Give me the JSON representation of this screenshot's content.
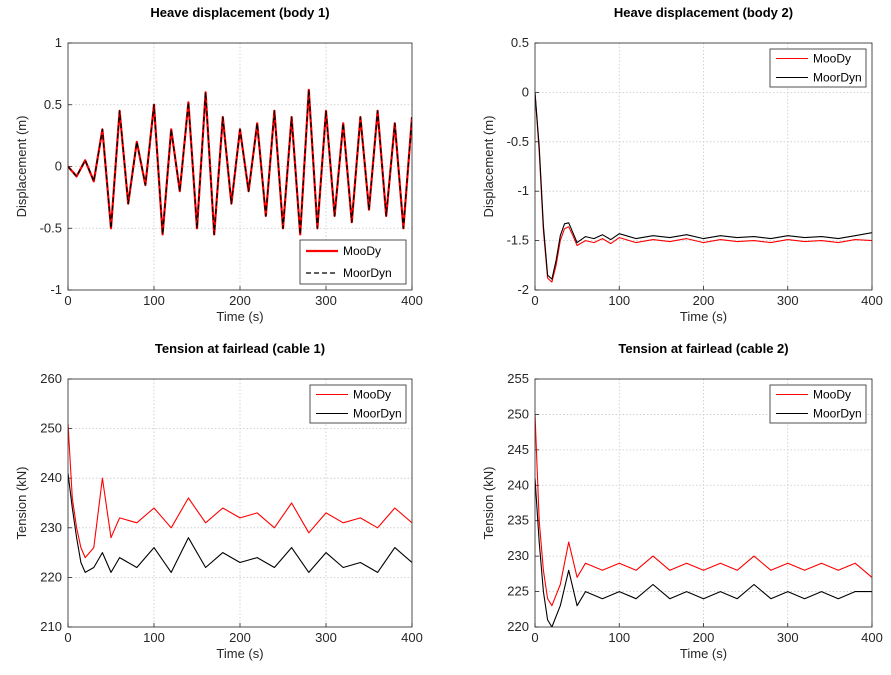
{
  "chart_data": [
    {
      "type": "line",
      "title": "Heave displacement (body 1)",
      "xlabel": "Time (s)",
      "ylabel": "Displacement (m)",
      "xlim": [
        0,
        400
      ],
      "ylim": [
        -1,
        1
      ],
      "xticks": [
        "0",
        "100",
        "200",
        "300",
        "400"
      ],
      "yticks": [
        "-1",
        "-0.5",
        "0",
        "0.5",
        "1"
      ],
      "grid": true,
      "legend_position": "bottom-right",
      "series": [
        {
          "name": "MooDy",
          "color": "#ff0000",
          "style": "solid-thick",
          "x": [
            0,
            10,
            20,
            30,
            40,
            50,
            60,
            70,
            80,
            90,
            100,
            110,
            120,
            130,
            140,
            150,
            160,
            170,
            180,
            190,
            200,
            210,
            220,
            230,
            240,
            250,
            260,
            270,
            280,
            290,
            300,
            310,
            320,
            330,
            340,
            350,
            360,
            370,
            380,
            390,
            400
          ],
          "y": [
            0,
            -0.08,
            0.05,
            -0.12,
            0.3,
            -0.5,
            0.45,
            -0.3,
            0.2,
            -0.15,
            0.5,
            -0.55,
            0.3,
            -0.2,
            0.52,
            -0.5,
            0.6,
            -0.55,
            0.4,
            -0.3,
            0.3,
            -0.2,
            0.35,
            -0.4,
            0.45,
            -0.5,
            0.4,
            -0.55,
            0.62,
            -0.5,
            0.45,
            -0.4,
            0.35,
            -0.45,
            0.4,
            -0.35,
            0.45,
            -0.4,
            0.35,
            -0.5,
            0.4
          ]
        },
        {
          "name": "MoorDyn",
          "color": "#000000",
          "style": "dashed",
          "x": [
            0,
            10,
            20,
            30,
            40,
            50,
            60,
            70,
            80,
            90,
            100,
            110,
            120,
            130,
            140,
            150,
            160,
            170,
            180,
            190,
            200,
            210,
            220,
            230,
            240,
            250,
            260,
            270,
            280,
            290,
            300,
            310,
            320,
            330,
            340,
            350,
            360,
            370,
            380,
            390,
            400
          ],
          "y": [
            0,
            -0.08,
            0.05,
            -0.12,
            0.3,
            -0.5,
            0.45,
            -0.3,
            0.2,
            -0.15,
            0.5,
            -0.55,
            0.3,
            -0.2,
            0.52,
            -0.5,
            0.6,
            -0.55,
            0.4,
            -0.3,
            0.3,
            -0.2,
            0.35,
            -0.4,
            0.45,
            -0.5,
            0.4,
            -0.55,
            0.62,
            -0.5,
            0.45,
            -0.4,
            0.35,
            -0.45,
            0.4,
            -0.35,
            0.45,
            -0.4,
            0.35,
            -0.5,
            0.4
          ]
        }
      ]
    },
    {
      "type": "line",
      "title": "Heave displacement (body 2)",
      "xlabel": "Time (s)",
      "ylabel": "Displacement (m)",
      "xlim": [
        0,
        400
      ],
      "ylim": [
        -2,
        0.5
      ],
      "xticks": [
        "0",
        "100",
        "200",
        "300",
        "400"
      ],
      "yticks": [
        "-2",
        "-1.5",
        "-1",
        "-0.5",
        "0",
        "0.5"
      ],
      "grid": true,
      "legend_position": "top-right",
      "series": [
        {
          "name": "MooDy",
          "color": "#ff0000",
          "style": "solid",
          "x": [
            0,
            5,
            10,
            15,
            20,
            25,
            30,
            35,
            40,
            45,
            50,
            60,
            70,
            80,
            90,
            100,
            120,
            140,
            160,
            180,
            200,
            220,
            240,
            260,
            280,
            300,
            320,
            340,
            360,
            380,
            400
          ],
          "y": [
            0,
            -0.6,
            -1.4,
            -1.88,
            -1.92,
            -1.75,
            -1.5,
            -1.38,
            -1.36,
            -1.45,
            -1.55,
            -1.5,
            -1.52,
            -1.48,
            -1.53,
            -1.47,
            -1.52,
            -1.49,
            -1.51,
            -1.48,
            -1.52,
            -1.49,
            -1.51,
            -1.5,
            -1.52,
            -1.49,
            -1.51,
            -1.5,
            -1.52,
            -1.49,
            -1.5
          ]
        },
        {
          "name": "MoorDyn",
          "color": "#000000",
          "style": "solid",
          "x": [
            0,
            5,
            10,
            15,
            20,
            25,
            30,
            35,
            40,
            45,
            50,
            60,
            70,
            80,
            90,
            100,
            120,
            140,
            160,
            180,
            200,
            220,
            240,
            260,
            280,
            300,
            320,
            340,
            360,
            380,
            400
          ],
          "y": [
            0,
            -0.55,
            -1.35,
            -1.85,
            -1.89,
            -1.7,
            -1.45,
            -1.33,
            -1.32,
            -1.42,
            -1.52,
            -1.46,
            -1.48,
            -1.44,
            -1.49,
            -1.43,
            -1.48,
            -1.45,
            -1.47,
            -1.44,
            -1.48,
            -1.45,
            -1.47,
            -1.46,
            -1.48,
            -1.45,
            -1.47,
            -1.46,
            -1.48,
            -1.45,
            -1.42
          ]
        }
      ]
    },
    {
      "type": "line",
      "title": "Tension at fairlead (cable 1)",
      "xlabel": "Time (s)",
      "ylabel": "Tension (kN)",
      "xlim": [
        0,
        400
      ],
      "ylim": [
        210,
        260
      ],
      "xticks": [
        "0",
        "100",
        "200",
        "300",
        "400"
      ],
      "yticks": [
        "210",
        "220",
        "230",
        "240",
        "250",
        "260"
      ],
      "grid": true,
      "legend_position": "top-right",
      "series": [
        {
          "name": "MooDy",
          "color": "#ff0000",
          "style": "solid",
          "x": [
            0,
            5,
            10,
            15,
            20,
            30,
            40,
            50,
            60,
            80,
            100,
            120,
            140,
            160,
            180,
            200,
            220,
            240,
            260,
            280,
            300,
            320,
            340,
            360,
            380,
            400
          ],
          "y": [
            251,
            236,
            230,
            226,
            224,
            226,
            240,
            228,
            232,
            231,
            234,
            230,
            236,
            231,
            234,
            232,
            233,
            230,
            235,
            229,
            233,
            231,
            232,
            230,
            234,
            231
          ]
        },
        {
          "name": "MoorDyn",
          "color": "#000000",
          "style": "solid",
          "x": [
            0,
            5,
            10,
            15,
            20,
            30,
            40,
            50,
            60,
            80,
            100,
            120,
            140,
            160,
            180,
            200,
            220,
            240,
            260,
            280,
            300,
            320,
            340,
            360,
            380,
            400
          ],
          "y": [
            241,
            234,
            228,
            223,
            221,
            222,
            225,
            221,
            224,
            222,
            226,
            221,
            228,
            222,
            225,
            223,
            224,
            222,
            226,
            221,
            225,
            222,
            223,
            221,
            226,
            223
          ]
        }
      ]
    },
    {
      "type": "line",
      "title": "Tension at fairlead (cable 2)",
      "xlabel": "Time (s)",
      "ylabel": "Tension (kN)",
      "xlim": [
        0,
        400
      ],
      "ylim": [
        220,
        255
      ],
      "xticks": [
        "0",
        "100",
        "200",
        "300",
        "400"
      ],
      "yticks": [
        "220",
        "225",
        "230",
        "235",
        "240",
        "245",
        "250",
        "255"
      ],
      "grid": true,
      "legend_position": "top-right",
      "series": [
        {
          "name": "MooDy",
          "color": "#ff0000",
          "style": "solid",
          "x": [
            0,
            5,
            10,
            15,
            20,
            30,
            40,
            50,
            60,
            80,
            100,
            120,
            140,
            160,
            180,
            200,
            220,
            240,
            260,
            280,
            300,
            320,
            340,
            360,
            380,
            400
          ],
          "y": [
            250,
            235,
            228,
            224,
            223,
            226,
            232,
            227,
            229,
            228,
            229,
            228,
            230,
            228,
            229,
            228,
            229,
            228,
            230,
            228,
            229,
            228,
            229,
            228,
            229,
            227
          ]
        },
        {
          "name": "MoorDyn",
          "color": "#000000",
          "style": "solid",
          "x": [
            0,
            5,
            10,
            15,
            20,
            30,
            40,
            50,
            60,
            80,
            100,
            120,
            140,
            160,
            180,
            200,
            220,
            240,
            260,
            280,
            300,
            320,
            340,
            360,
            380,
            400
          ],
          "y": [
            241,
            232,
            225,
            221,
            220,
            223,
            228,
            223,
            225,
            224,
            225,
            224,
            226,
            224,
            225,
            224,
            225,
            224,
            226,
            224,
            225,
            224,
            225,
            224,
            225,
            225
          ]
        }
      ]
    }
  ]
}
